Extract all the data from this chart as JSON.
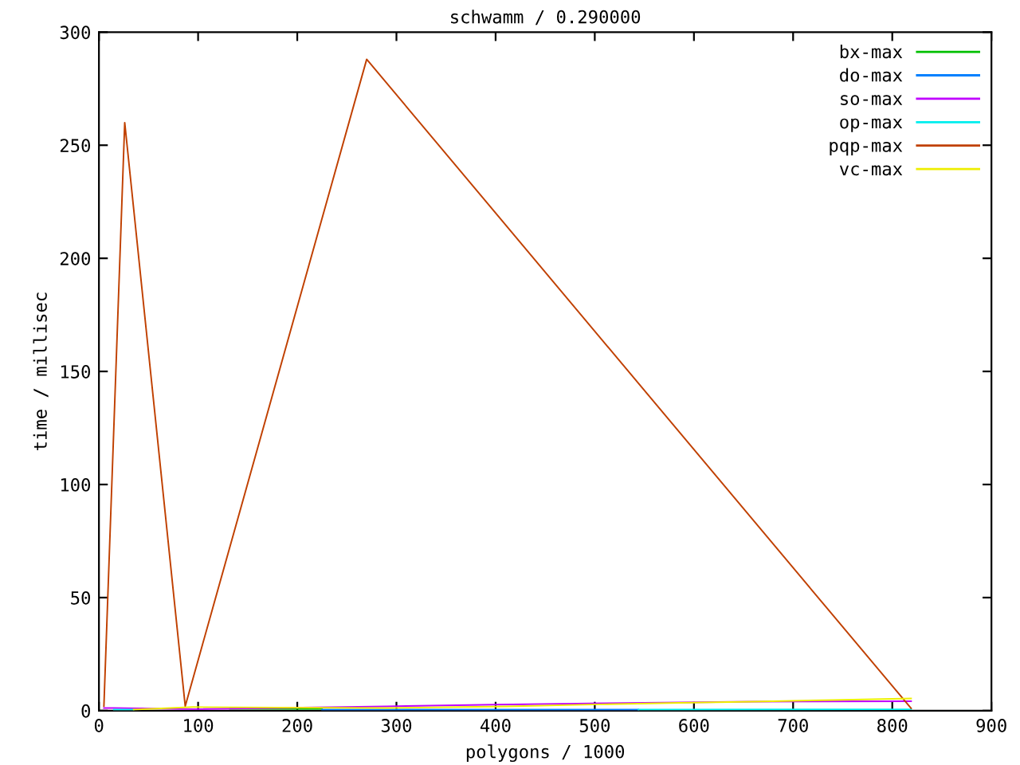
{
  "chart_data": {
    "type": "line",
    "title": "schwamm / 0.290000",
    "xlabel": "polygons / 1000",
    "ylabel": "time / millisec",
    "series": [
      {
        "name": "bx-max",
        "color": "#00c000",
        "x": [
          132,
          225
        ],
        "values": [
          0.8,
          0.8
        ]
      },
      {
        "name": "do-max",
        "color": "#0080ff",
        "x": [
          225,
          383,
          544
        ],
        "values": [
          0.5,
          0.5,
          0.5
        ]
      },
      {
        "name": "so-max",
        "color": "#c000ff",
        "x": [
          5,
          15,
          95,
          290,
          400,
          660,
          819
        ],
        "values": [
          1.2,
          1.2,
          0.7,
          1.9,
          2.7,
          4.0,
          4.2
        ]
      },
      {
        "name": "op-max",
        "color": "#00eeee",
        "x": [
          15,
          35,
          225,
          544,
          819
        ],
        "values": [
          0.5,
          0.5,
          null,
          0.5,
          0.6
        ]
      },
      {
        "name": "pqp-max",
        "color": "#c04000",
        "x": [
          5,
          26,
          87,
          270,
          819
        ],
        "values": [
          2,
          260,
          2,
          288,
          1
        ]
      },
      {
        "name": "vc-max",
        "color": "#eeee00",
        "x": [
          35,
          95,
          180,
          290,
          410,
          505,
          585,
          660,
          740,
          819
        ],
        "values": [
          0.5,
          1.6,
          1.4,
          1.2,
          1.9,
          2.8,
          3.5,
          4.0,
          4.7,
          5.4
        ]
      }
    ],
    "xlim": [
      0,
      900
    ],
    "xticks": [
      0,
      100,
      200,
      300,
      400,
      500,
      600,
      700,
      800,
      900
    ],
    "ylim": [
      0,
      300
    ],
    "yticks": [
      0,
      50,
      100,
      150,
      200,
      250,
      300
    ],
    "grid": false,
    "legend": "top right",
    "marker": "none",
    "line_style": "solid"
  }
}
